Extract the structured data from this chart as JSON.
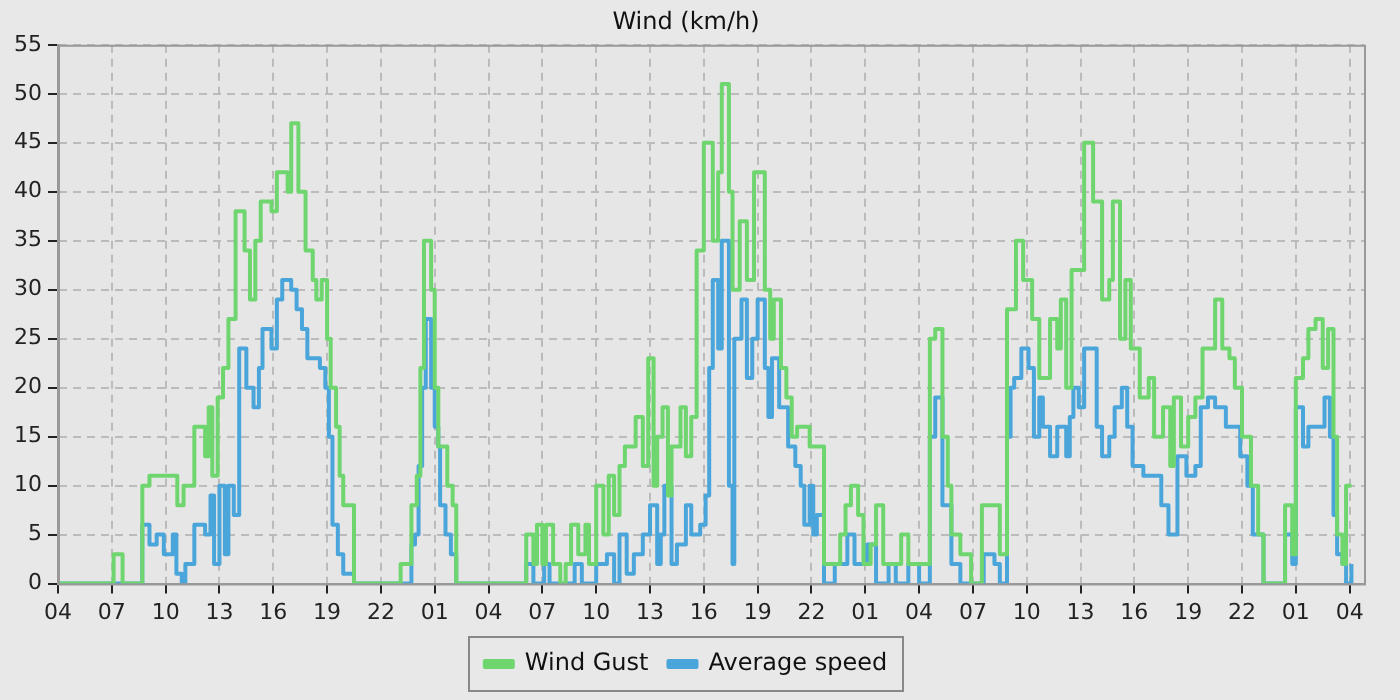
{
  "chart_data": {
    "type": "step",
    "title": "Wind (km/h)",
    "legend": "bottom",
    "grid": true,
    "marker": "none",
    "xlim": [
      "--01-01T04:00",
      "--01-04T04:48"
    ],
    "xticks": [
      {
        "value": "--01-01T04:00",
        "label": "04"
      },
      {
        "value": "--01-01T07:00",
        "label": "07"
      },
      {
        "value": "--01-01T10:00",
        "label": "10"
      },
      {
        "value": "--01-01T13:00",
        "label": "13"
      },
      {
        "value": "--01-01T16:00",
        "label": "16"
      },
      {
        "value": "--01-01T19:00",
        "label": "19"
      },
      {
        "value": "--01-01T22:00",
        "label": "22"
      },
      {
        "value": "--01-02T01:00",
        "label": "01"
      },
      {
        "value": "--01-02T04:00",
        "label": "04"
      },
      {
        "value": "--01-02T07:00",
        "label": "07"
      },
      {
        "value": "--01-02T10:00",
        "label": "10"
      },
      {
        "value": "--01-02T13:00",
        "label": "13"
      },
      {
        "value": "--01-02T16:00",
        "label": "16"
      },
      {
        "value": "--01-02T19:00",
        "label": "19"
      },
      {
        "value": "--01-02T22:00",
        "label": "22"
      },
      {
        "value": "--01-03T01:00",
        "label": "01"
      },
      {
        "value": "--01-03T04:00",
        "label": "04"
      },
      {
        "value": "--01-03T07:00",
        "label": "07"
      },
      {
        "value": "--01-03T10:00",
        "label": "10"
      },
      {
        "value": "--01-03T13:00",
        "label": "13"
      },
      {
        "value": "--01-03T16:00",
        "label": "16"
      },
      {
        "value": "--01-03T19:00",
        "label": "19"
      },
      {
        "value": "--01-03T22:00",
        "label": "22"
      },
      {
        "value": "--01-04T01:00",
        "label": "01"
      },
      {
        "value": "--01-04T04:00",
        "label": "04"
      }
    ],
    "ylim": [
      0,
      55
    ],
    "yticks": [
      0,
      5,
      10,
      15,
      20,
      25,
      30,
      35,
      40,
      45,
      50,
      55
    ],
    "series": [
      {
        "name": "Wind Gust",
        "color": "#6fd66f",
        "x": [
          "--01-01T04:00",
          "--01-01T07:06",
          "--01-01T07:36",
          "--01-01T08:42",
          "--01-01T09:06",
          "--01-01T10:39",
          "--01-01T11:00",
          "--01-01T11:36",
          "--01-01T12:12",
          "--01-01T12:24",
          "--01-01T12:36",
          "--01-01T12:54",
          "--01-01T13:12",
          "--01-01T13:30",
          "--01-01T13:54",
          "--01-01T14:24",
          "--01-01T14:42",
          "--01-01T15:00",
          "--01-01T15:18",
          "--01-01T15:54",
          "--01-01T16:12",
          "--01-01T16:48",
          "--01-01T17:00",
          "--01-01T17:24",
          "--01-01T17:48",
          "--01-01T18:12",
          "--01-01T18:24",
          "--01-01T18:42",
          "--01-01T19:00",
          "--01-01T19:12",
          "--01-01T19:30",
          "--01-01T19:42",
          "--01-01T19:54",
          "--01-01T20:30",
          "--01-01T23:06",
          "--01-01T23:42",
          "--01-02T00:00",
          "--01-02T00:12",
          "--01-02T00:24",
          "--01-02T00:48",
          "--01-02T01:00",
          "--01-02T01:12",
          "--01-02T01:42",
          "--01-02T02:00",
          "--01-02T02:12",
          "--01-02T06:06",
          "--01-02T06:30",
          "--01-02T06:42",
          "--01-02T07:00",
          "--01-02T07:12",
          "--01-02T07:36",
          "--01-02T08:00",
          "--01-02T08:18",
          "--01-02T08:36",
          "--01-02T09:00",
          "--01-02T09:24",
          "--01-02T09:36",
          "--01-02T10:00",
          "--01-02T10:24",
          "--01-02T10:42",
          "--01-02T11:00",
          "--01-02T11:18",
          "--01-02T11:36",
          "--01-02T12:12",
          "--01-02T12:36",
          "--01-02T12:54",
          "--01-02T13:12",
          "--01-02T13:24",
          "--01-02T13:42",
          "--01-02T14:00",
          "--01-02T14:12",
          "--01-02T14:42",
          "--01-02T15:00",
          "--01-02T15:18",
          "--01-02T15:36",
          "--01-02T16:00",
          "--01-02T16:30",
          "--01-02T16:48",
          "--01-02T17:00",
          "--01-02T17:24",
          "--01-02T17:36",
          "--01-02T18:00",
          "--01-02T18:24",
          "--01-02T18:48",
          "--01-02T19:24",
          "--01-02T19:42",
          "--01-02T19:54",
          "--01-02T20:18",
          "--01-02T20:36",
          "--01-02T20:54",
          "--01-02T21:12",
          "--01-02T21:54",
          "--01-02T22:42",
          "--01-02T23:36",
          "--01-02T23:54",
          "--01-03T00:12",
          "--01-03T00:36",
          "--01-03T00:54",
          "--01-03T01:18",
          "--01-03T01:36",
          "--01-03T02:00",
          "--01-03T03:00",
          "--01-03T03:24",
          "--01-03T04:36",
          "--01-03T04:54",
          "--01-03T05:18",
          "--01-03T05:36",
          "--01-03T05:48",
          "--01-03T06:18",
          "--01-03T06:54",
          "--01-03T07:30",
          "--01-03T08:30",
          "--01-03T08:54",
          "--01-03T09:24",
          "--01-03T09:48",
          "--01-03T10:18",
          "--01-03T10:42",
          "--01-03T11:18",
          "--01-03T11:42",
          "--01-03T11:54",
          "--01-03T12:12",
          "--01-03T12:30",
          "--01-03T13:12",
          "--01-03T13:42",
          "--01-03T14:12",
          "--01-03T14:36",
          "--01-03T14:48",
          "--01-03T15:12",
          "--01-03T15:30",
          "--01-03T15:48",
          "--01-03T16:18",
          "--01-03T16:48",
          "--01-03T17:06",
          "--01-03T17:36",
          "--01-03T18:00",
          "--01-03T18:12",
          "--01-03T18:36",
          "--01-03T19:00",
          "--01-03T19:24",
          "--01-03T19:48",
          "--01-03T20:30",
          "--01-03T20:54",
          "--01-03T21:18",
          "--01-03T21:36",
          "--01-03T22:00",
          "--01-03T22:30",
          "--01-03T22:54",
          "--01-03T23:12",
          "--01-04T00:24",
          "--01-04T00:48",
          "--01-04T01:00",
          "--01-04T01:24",
          "--01-04T01:42",
          "--01-04T02:06",
          "--01-04T02:30",
          "--01-04T02:48",
          "--01-04T03:06",
          "--01-04T03:18",
          "--01-04T03:36",
          "--01-04T03:48",
          "--01-04T04:06"
        ],
        "values": [
          0,
          3,
          0,
          10,
          11,
          8,
          10,
          16,
          13,
          18,
          11,
          19,
          22,
          27,
          38,
          34,
          29,
          35,
          39,
          38,
          42,
          40,
          47,
          40,
          34,
          31,
          29,
          31,
          25,
          20,
          16,
          11,
          8,
          0,
          2,
          8,
          11,
          22,
          35,
          30,
          20,
          14,
          10,
          8,
          0,
          5,
          2,
          6,
          2,
          6,
          2,
          0,
          2,
          6,
          3,
          6,
          2,
          10,
          5,
          11,
          7,
          12,
          14,
          17,
          12,
          23,
          10,
          15,
          18,
          9,
          14,
          18,
          13,
          17,
          34,
          45,
          35,
          42,
          51,
          40,
          30,
          37,
          31,
          42,
          30,
          25,
          29,
          22,
          19,
          15,
          16,
          14,
          2,
          5,
          8,
          10,
          7,
          2,
          4,
          8,
          2,
          5,
          2,
          25,
          26,
          15,
          10,
          5,
          3,
          0,
          8,
          3,
          28,
          35,
          31,
          27,
          21,
          27,
          24,
          29,
          20,
          32,
          45,
          39,
          29,
          31,
          39,
          25,
          31,
          24,
          19,
          21,
          15,
          18,
          12,
          19,
          14,
          17,
          19,
          24,
          29,
          24,
          23,
          20,
          15,
          10,
          5,
          0,
          8,
          3,
          21,
          23,
          26,
          27,
          22,
          26,
          15,
          5,
          2,
          10,
          10
        ]
      },
      {
        "name": "Average speed",
        "color": "#4aa6da",
        "x": [
          "--01-01T04:00",
          "--01-01T08:42",
          "--01-01T09:06",
          "--01-01T09:30",
          "--01-01T09:54",
          "--01-01T10:24",
          "--01-01T10:36",
          "--01-01T10:54",
          "--01-01T11:06",
          "--01-01T11:36",
          "--01-01T12:12",
          "--01-01T12:30",
          "--01-01T12:42",
          "--01-01T13:00",
          "--01-01T13:18",
          "--01-01T13:30",
          "--01-01T13:48",
          "--01-01T14:06",
          "--01-01T14:30",
          "--01-01T14:54",
          "--01-01T15:12",
          "--01-01T15:24",
          "--01-01T15:54",
          "--01-01T16:12",
          "--01-01T16:30",
          "--01-01T17:00",
          "--01-01T17:18",
          "--01-01T17:36",
          "--01-01T17:54",
          "--01-01T18:36",
          "--01-01T18:54",
          "--01-01T19:06",
          "--01-01T19:18",
          "--01-01T19:36",
          "--01-01T19:54",
          "--01-01T20:30",
          "--01-01T23:42",
          "--01-01T23:54",
          "--01-02T00:06",
          "--01-02T00:18",
          "--01-02T00:30",
          "--01-02T00:48",
          "--01-02T01:00",
          "--01-02T01:12",
          "--01-02T01:18",
          "--01-02T01:36",
          "--01-02T01:54",
          "--01-02T02:12",
          "--01-02T06:06",
          "--01-02T06:30",
          "--01-02T07:06",
          "--01-02T07:24",
          "--01-02T08:48",
          "--01-02T09:12",
          "--01-02T10:00",
          "--01-02T10:36",
          "--01-02T11:00",
          "--01-02T11:18",
          "--01-02T11:42",
          "--01-02T12:06",
          "--01-02T12:36",
          "--01-02T13:00",
          "--01-02T13:24",
          "--01-02T13:36",
          "--01-02T13:48",
          "--01-02T14:12",
          "--01-02T14:30",
          "--01-02T15:00",
          "--01-02T15:18",
          "--01-02T15:48",
          "--01-02T16:06",
          "--01-02T16:18",
          "--01-02T16:30",
          "--01-02T16:48",
          "--01-02T17:00",
          "--01-02T17:24",
          "--01-02T17:36",
          "--01-02T17:42",
          "--01-02T18:06",
          "--01-02T18:24",
          "--01-02T18:42",
          "--01-02T19:00",
          "--01-02T19:24",
          "--01-02T19:36",
          "--01-02T19:48",
          "--01-02T20:12",
          "--01-02T20:42",
          "--01-02T21:06",
          "--01-02T21:24",
          "--01-02T21:36",
          "--01-02T21:54",
          "--01-02T22:06",
          "--01-02T22:18",
          "--01-02T22:42",
          "--01-02T23:18",
          "--01-02T23:42",
          "--01-03T00:00",
          "--01-03T00:24",
          "--01-03T01:06",
          "--01-03T01:36",
          "--01-03T02:18",
          "--01-03T02:42",
          "--01-03T03:24",
          "--01-03T04:00",
          "--01-03T04:36",
          "--01-03T04:54",
          "--01-03T05:18",
          "--01-03T05:48",
          "--01-03T06:18",
          "--01-03T07:36",
          "--01-03T08:12",
          "--01-03T08:30",
          "--01-03T08:54",
          "--01-03T09:06",
          "--01-03T09:18",
          "--01-03T09:42",
          "--01-03T10:06",
          "--01-03T10:24",
          "--01-03T10:42",
          "--01-03T10:54",
          "--01-03T11:18",
          "--01-03T11:42",
          "--01-03T12:12",
          "--01-03T12:24",
          "--01-03T12:36",
          "--01-03T12:54",
          "--01-03T13:12",
          "--01-03T13:54",
          "--01-03T14:12",
          "--01-03T14:36",
          "--01-03T14:54",
          "--01-03T15:18",
          "--01-03T15:36",
          "--01-03T15:54",
          "--01-03T16:30",
          "--01-03T17:30",
          "--01-03T17:54",
          "--01-03T18:24",
          "--01-03T18:54",
          "--01-03T19:24",
          "--01-03T19:42",
          "--01-03T20:06",
          "--01-03T20:30",
          "--01-03T21:06",
          "--01-03T21:54",
          "--01-03T22:18",
          "--01-03T22:36",
          "--01-03T23:12",
          "--01-04T00:24",
          "--01-04T00:48",
          "--01-04T01:00",
          "--01-04T01:24",
          "--01-04T01:42",
          "--01-04T02:18",
          "--01-04T02:36",
          "--01-04T02:54",
          "--01-04T03:06",
          "--01-04T03:18",
          "--01-04T03:36",
          "--01-04T03:48",
          "--01-04T04:06"
        ],
        "values": [
          0,
          6,
          4,
          5,
          3,
          5,
          1,
          0,
          2,
          6,
          5,
          9,
          2,
          10,
          3,
          10,
          7,
          24,
          20,
          18,
          22,
          26,
          24,
          29,
          31,
          30,
          28,
          26,
          23,
          22,
          20,
          15,
          6,
          3,
          1,
          0,
          4,
          5,
          12,
          20,
          27,
          20,
          16,
          14,
          8,
          5,
          3,
          0,
          2,
          0,
          2,
          0,
          2,
          0,
          2,
          3,
          0,
          5,
          1,
          3,
          5,
          8,
          2,
          5,
          10,
          2,
          4,
          8,
          5,
          6,
          9,
          22,
          31,
          24,
          35,
          10,
          2,
          25,
          29,
          21,
          25,
          29,
          22,
          17,
          23,
          18,
          14,
          12,
          10,
          6,
          10,
          5,
          7,
          0,
          2,
          2,
          5,
          2,
          4,
          0,
          2,
          0,
          2,
          0,
          15,
          19,
          8,
          2,
          0,
          3,
          2,
          0,
          15,
          20,
          21,
          24,
          22,
          15,
          19,
          16,
          13,
          16,
          13,
          17,
          20,
          18,
          24,
          16,
          13,
          15,
          18,
          20,
          16,
          12,
          11,
          8,
          5,
          13,
          11,
          12,
          18,
          19,
          18,
          16,
          13,
          10,
          5,
          0,
          5,
          2,
          18,
          14,
          16,
          16,
          19,
          15,
          7,
          3,
          2,
          0,
          2
        ]
      }
    ]
  }
}
